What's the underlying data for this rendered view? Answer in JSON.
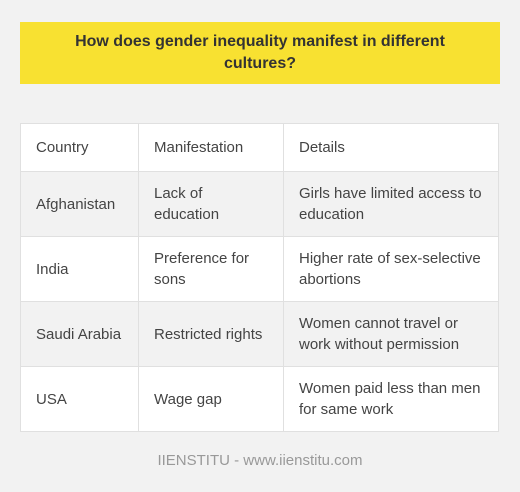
{
  "title": "How does gender inequality manifest in different cultures?",
  "table": {
    "headers": [
      "Country",
      "Manifestation",
      "Details"
    ],
    "rows": [
      [
        "Afghanistan",
        "Lack of education",
        "Girls have limited access to education"
      ],
      [
        "India",
        "Preference for sons",
        "Higher rate of sex-selective abortions"
      ],
      [
        "Saudi Arabia",
        "Restricted rights",
        "Women cannot travel or work without permission"
      ],
      [
        "USA",
        "Wage gap",
        "Women paid less than men for same work"
      ]
    ]
  },
  "footer": "IIENSTITU - www.iienstitu.com",
  "colors": {
    "title_background": "#f8e131",
    "page_background": "#f2f2f2",
    "row_alt_background": "#f2f2f2",
    "row_background": "#ffffff"
  }
}
